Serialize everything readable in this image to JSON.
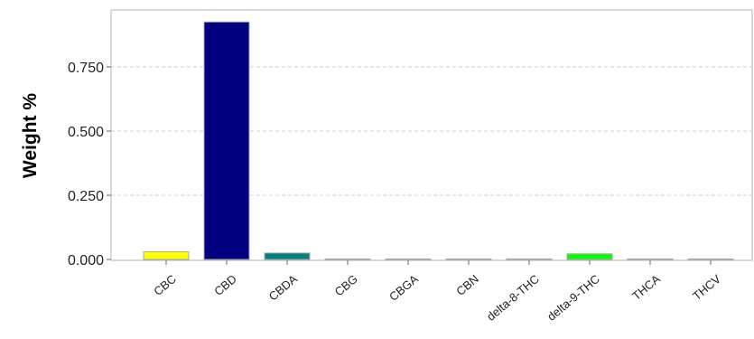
{
  "chart_data": {
    "type": "bar",
    "title": "",
    "xlabel": "",
    "ylabel": "Weight %",
    "categories": [
      "CBC",
      "CBD",
      "CBDA",
      "CBG",
      "CBGA",
      "CBN",
      "delta-8-THC",
      "delta-9-THC",
      "THCA",
      "THCV"
    ],
    "values": [
      0.03,
      0.925,
      0.025,
      0,
      0,
      0,
      0,
      0.022,
      0,
      0
    ],
    "bar_colors": [
      "#ffff00",
      "#000080",
      "#008080",
      "#808080",
      "#808080",
      "#808080",
      "#808080",
      "#00ff00",
      "#808080",
      "#808080"
    ],
    "yticks": [
      "0.000",
      "0.250",
      "0.500",
      "0.750"
    ],
    "ylim": [
      0,
      0.98
    ],
    "grid": true,
    "legend": "none"
  }
}
